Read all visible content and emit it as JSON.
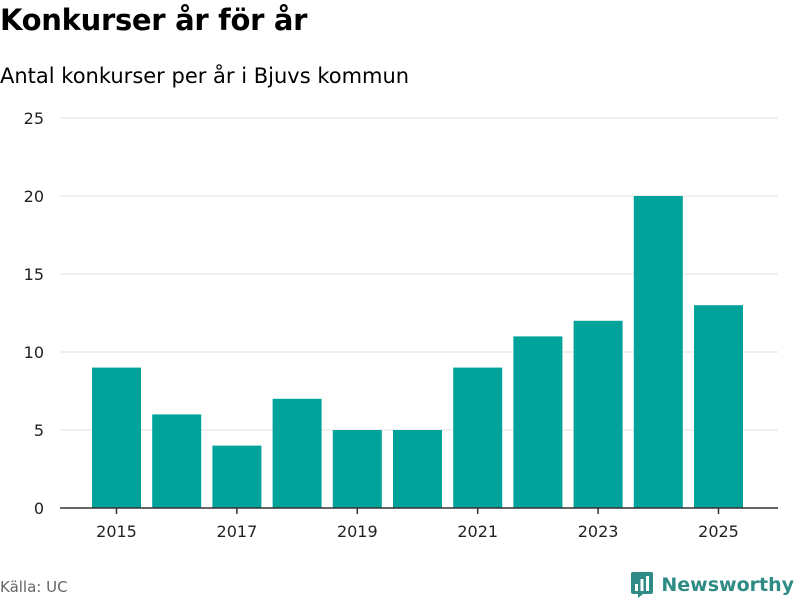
{
  "header": {
    "title": "Konkurser år för år",
    "subtitle": "Antal konkurser per år i Bjuvs kommun"
  },
  "footer": {
    "source": "Källa: UC",
    "brand": "Newsworthy"
  },
  "colors": {
    "bar": "#00a39a",
    "grid": "#e1e1e1",
    "axis": "#333333",
    "brand": "#2e8b85"
  },
  "icons": {
    "brand": "newsworthy-logo-icon"
  },
  "chart_data": {
    "type": "bar",
    "x": [
      2015,
      2016,
      2017,
      2018,
      2019,
      2020,
      2021,
      2022,
      2023,
      2024,
      2025
    ],
    "values": [
      9,
      6,
      4,
      7,
      5,
      5,
      9,
      11,
      12,
      20,
      13
    ],
    "x_tick_labels": [
      "2015",
      "2017",
      "2019",
      "2021",
      "2023",
      "2025"
    ],
    "y_ticks": [
      0,
      5,
      10,
      15,
      20,
      25
    ],
    "ylim": [
      0,
      25
    ],
    "grid": true,
    "legend": "none"
  }
}
